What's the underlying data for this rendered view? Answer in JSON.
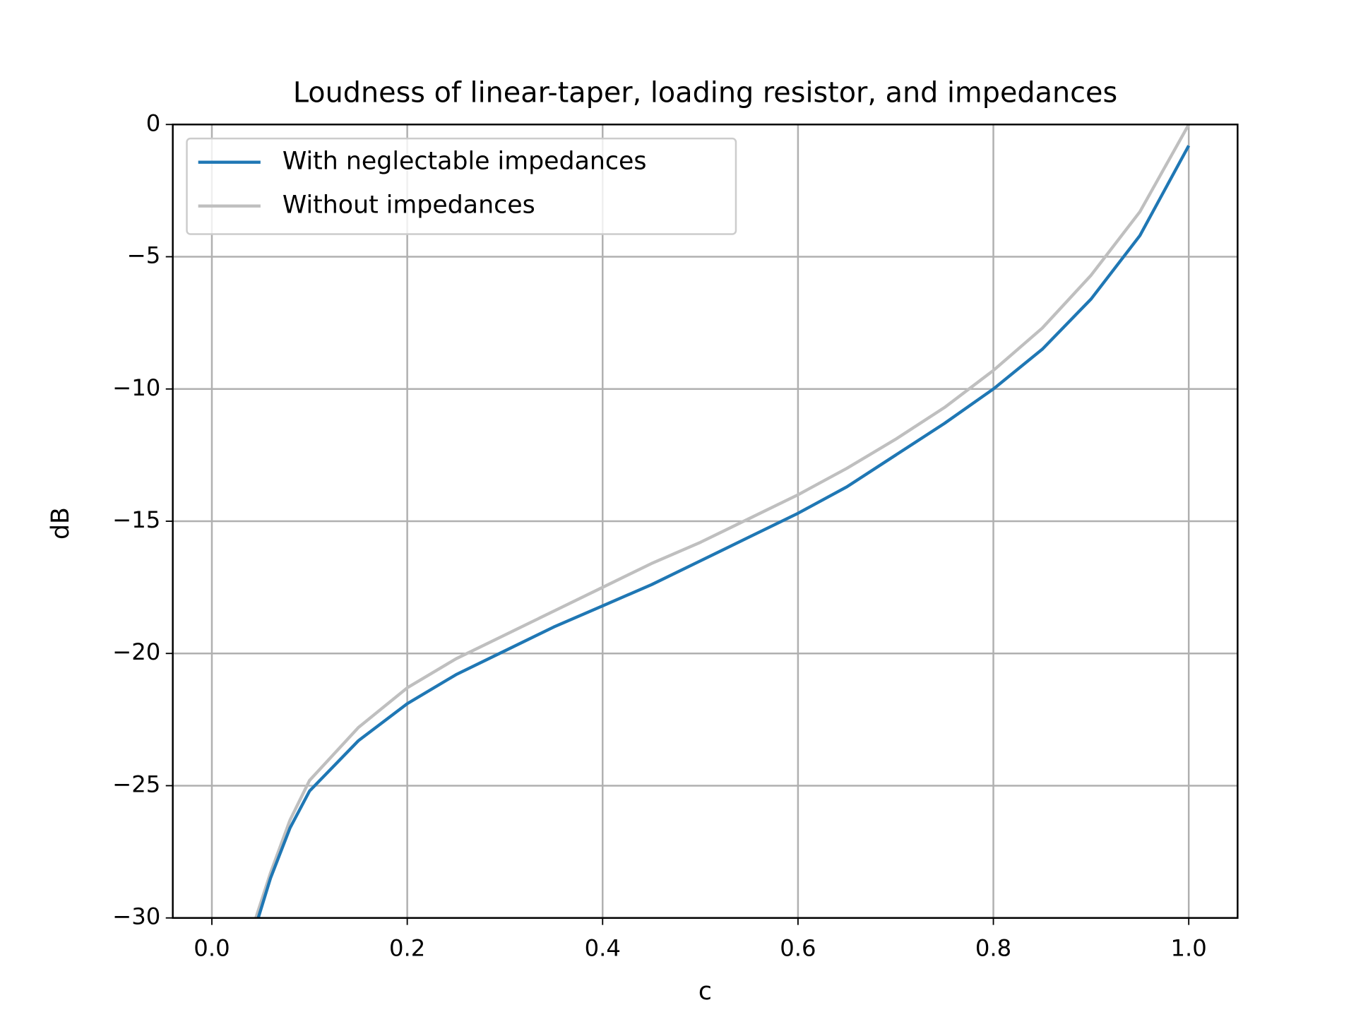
{
  "chart_data": {
    "type": "line",
    "title": "Loudness of linear-taper, loading resistor, and impedances",
    "x_label": "c",
    "y_label": "dB",
    "x": [
      0.045,
      0.06,
      0.08,
      0.1,
      0.15,
      0.2,
      0.25,
      0.3,
      0.35,
      0.4,
      0.45,
      0.5,
      0.55,
      0.6,
      0.65,
      0.7,
      0.75,
      0.8,
      0.85,
      0.9,
      0.95,
      1.0
    ],
    "series": [
      {
        "name": "With neglectable impedances",
        "color": "#1f77b4",
        "values": [
          -30.3,
          -28.5,
          -26.6,
          -25.2,
          -23.3,
          -21.9,
          -20.8,
          -19.9,
          -19.0,
          -18.2,
          -17.4,
          -16.5,
          -15.6,
          -14.7,
          -13.7,
          -12.5,
          -11.3,
          -10.0,
          -8.5,
          -6.6,
          -4.2,
          -0.8
        ]
      },
      {
        "name": "Without impedances",
        "color": "#bfbfbf",
        "values": [
          -30.0,
          -28.3,
          -26.3,
          -24.8,
          -22.8,
          -21.3,
          -20.2,
          -19.3,
          -18.4,
          -17.5,
          -16.6,
          -15.8,
          -14.9,
          -14.0,
          -13.0,
          -11.9,
          -10.7,
          -9.3,
          -7.7,
          -5.7,
          -3.3,
          0.0
        ]
      }
    ],
    "xlim": [
      -0.04,
      1.05
    ],
    "ylim": [
      -30,
      0
    ],
    "xticks": [
      {
        "value": 0,
        "label": "0.0"
      },
      {
        "value": 0.2,
        "label": "0.2"
      },
      {
        "value": 0.4,
        "label": "0.4"
      },
      {
        "value": 0.6,
        "label": "0.6"
      },
      {
        "value": 0.8,
        "label": "0.8"
      },
      {
        "value": 1,
        "label": "1.0"
      }
    ],
    "yticks": [
      {
        "value": -30,
        "label": "−30"
      },
      {
        "value": -25,
        "label": "−25"
      },
      {
        "value": -20,
        "label": "−20"
      },
      {
        "value": -15,
        "label": "−15"
      },
      {
        "value": -10,
        "label": "−10"
      },
      {
        "value": -5,
        "label": "−5"
      },
      0
    ],
    "grid": true,
    "legend": "upper left"
  }
}
